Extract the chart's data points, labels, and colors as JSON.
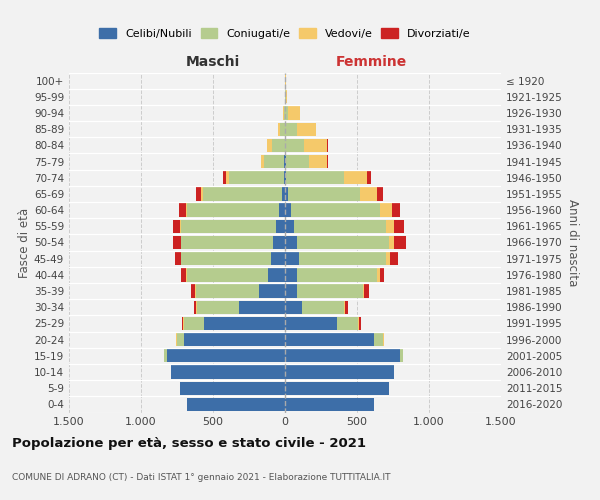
{
  "age_groups": [
    "0-4",
    "5-9",
    "10-14",
    "15-19",
    "20-24",
    "25-29",
    "30-34",
    "35-39",
    "40-44",
    "45-49",
    "50-54",
    "55-59",
    "60-64",
    "65-69",
    "70-74",
    "75-79",
    "80-84",
    "85-89",
    "90-94",
    "95-99",
    "100+"
  ],
  "birth_years": [
    "2016-2020",
    "2011-2015",
    "2006-2010",
    "2001-2005",
    "1996-2000",
    "1991-1995",
    "1986-1990",
    "1981-1985",
    "1976-1980",
    "1971-1975",
    "1966-1970",
    "1961-1965",
    "1956-1960",
    "1951-1955",
    "1946-1950",
    "1941-1945",
    "1936-1940",
    "1931-1935",
    "1926-1930",
    "1921-1925",
    "≤ 1920"
  ],
  "maschi": {
    "celibe": [
      680,
      730,
      790,
      820,
      700,
      560,
      320,
      180,
      120,
      100,
      80,
      60,
      40,
      20,
      10,
      5,
      2,
      2,
      2,
      2,
      2
    ],
    "coniugato": [
      0,
      0,
      0,
      20,
      50,
      140,
      290,
      440,
      560,
      620,
      640,
      660,
      640,
      550,
      380,
      140,
      90,
      30,
      5,
      0,
      0
    ],
    "vedovo": [
      0,
      0,
      0,
      0,
      5,
      5,
      5,
      5,
      5,
      5,
      5,
      10,
      10,
      15,
      20,
      20,
      30,
      15,
      5,
      0,
      0
    ],
    "divorziato": [
      0,
      0,
      0,
      0,
      0,
      10,
      15,
      30,
      35,
      40,
      50,
      50,
      45,
      30,
      20,
      5,
      5,
      0,
      0,
      0,
      0
    ]
  },
  "femmine": {
    "nubile": [
      620,
      720,
      760,
      800,
      620,
      360,
      120,
      80,
      80,
      100,
      80,
      60,
      40,
      20,
      10,
      5,
      2,
      2,
      2,
      0,
      0
    ],
    "coniugata": [
      0,
      0,
      0,
      20,
      60,
      150,
      290,
      460,
      560,
      600,
      640,
      640,
      620,
      500,
      400,
      160,
      130,
      80,
      20,
      5,
      0
    ],
    "vedova": [
      0,
      0,
      0,
      0,
      5,
      5,
      10,
      10,
      20,
      30,
      40,
      60,
      80,
      120,
      160,
      130,
      160,
      130,
      80,
      10,
      5
    ],
    "divorziata": [
      0,
      0,
      0,
      0,
      5,
      10,
      15,
      30,
      30,
      55,
      80,
      65,
      60,
      40,
      25,
      5,
      5,
      0,
      0,
      0,
      0
    ]
  },
  "colors": {
    "celibe": "#3d6ea8",
    "coniugato": "#b5cc8e",
    "vedovo": "#f5c96a",
    "divorziato": "#cc2222"
  },
  "title": "Popolazione per età, sesso e stato civile - 2021",
  "subtitle": "COMUNE DI ADRANO (CT) - Dati ISTAT 1° gennaio 2021 - Elaborazione TUTTITALIA.IT",
  "xlabel_left": "Maschi",
  "xlabel_right": "Femmine",
  "ylabel_left": "Fasce di età",
  "ylabel_right": "Anni di nascita",
  "xlim": 1500,
  "background_color": "#f2f2f2",
  "legend_labels": [
    "Celibi/Nubili",
    "Coniugati/e",
    "Vedovi/e",
    "Divorziati/e"
  ]
}
